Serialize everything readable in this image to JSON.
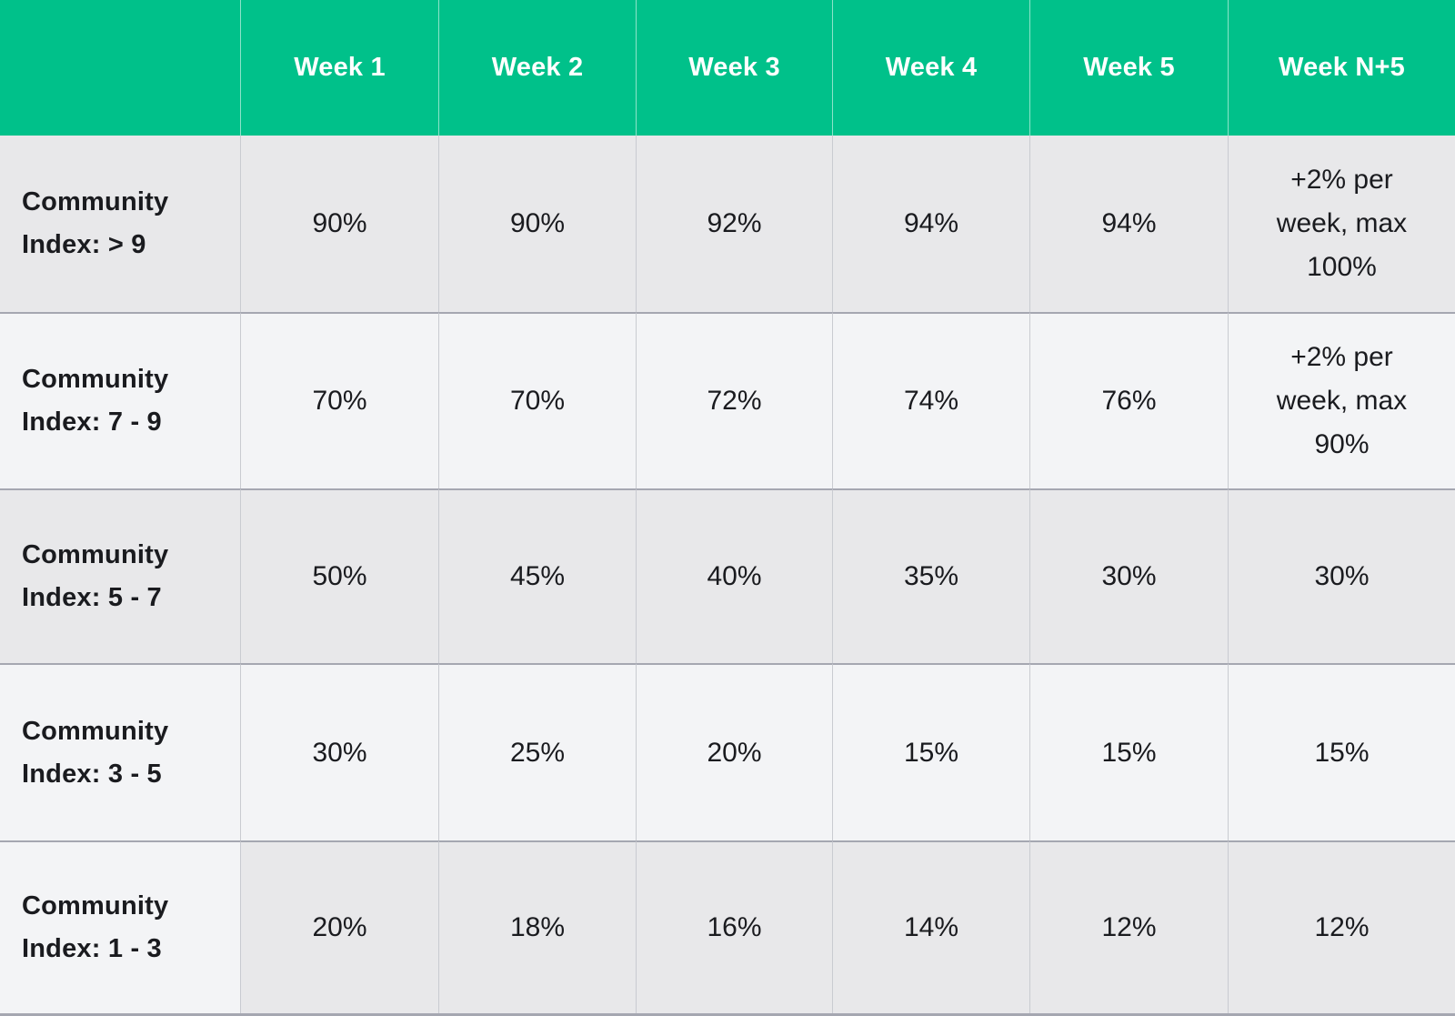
{
  "colors": {
    "header_bg": "#00C18A",
    "header_text": "#FFFFFF",
    "row_dark": "#E8E8EA",
    "row_light": "#F3F4F6",
    "divider_vertical": "#C9CBD1",
    "divider_horizontal": "#A5A7B1",
    "text": "#1A1B1F"
  },
  "chart_data": {
    "type": "table",
    "title": "",
    "columns": [
      "",
      "Week 1",
      "Week 2",
      "Week 3",
      "Week 4",
      "Week 5",
      "Week N+5"
    ],
    "rows": [
      {
        "label": "Community Index: > 9",
        "values": [
          "90%",
          "90%",
          "92%",
          "94%",
          "94%",
          "+2% per week, max 100%"
        ]
      },
      {
        "label": "Community Index: 7 - 9",
        "values": [
          "70%",
          "70%",
          "72%",
          "74%",
          "76%",
          "+2% per week, max 90%"
        ]
      },
      {
        "label": "Community Index: 5 - 7",
        "values": [
          "50%",
          "45%",
          "40%",
          "35%",
          "30%",
          "30%"
        ]
      },
      {
        "label": "Community Index: 3 - 5",
        "values": [
          "30%",
          "25%",
          "20%",
          "15%",
          "15%",
          "15%"
        ]
      },
      {
        "label": "Community Index: 1 - 3",
        "values": [
          "20%",
          "18%",
          "16%",
          "14%",
          "12%",
          "12%"
        ]
      }
    ]
  }
}
